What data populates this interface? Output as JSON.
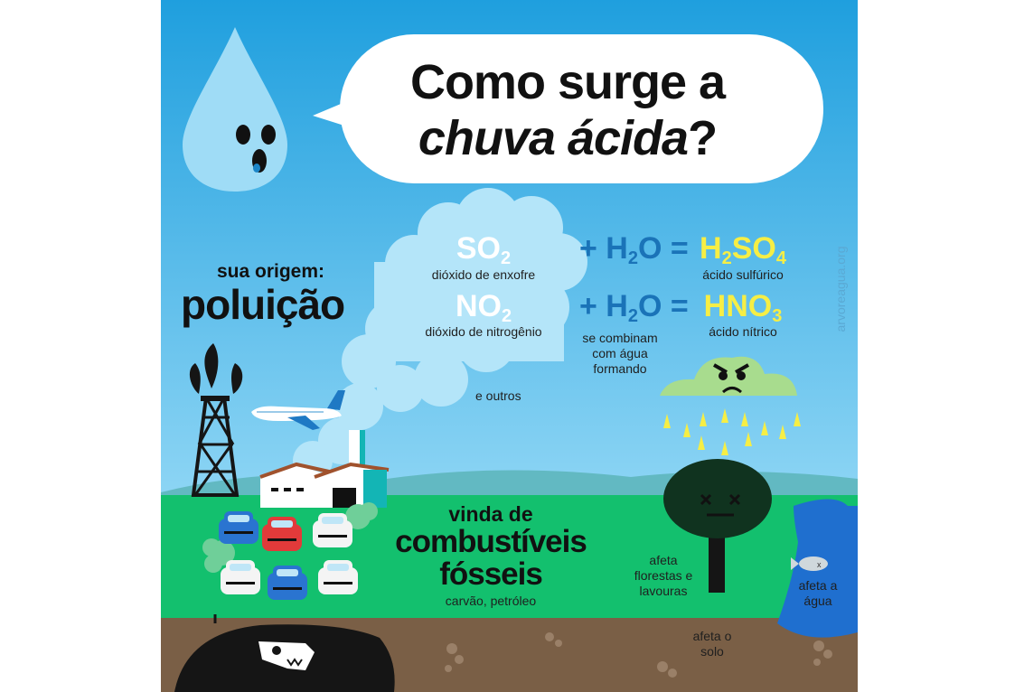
{
  "title": {
    "line1": "Como surge a",
    "line2_italic": "chuva ácida",
    "line2_mark": "?"
  },
  "origin": {
    "label": "sua origem:",
    "value": "poluição"
  },
  "compounds": [
    {
      "symbol": "SO",
      "sub": "2",
      "name": "dióxido de enxofre"
    },
    {
      "symbol": "NO",
      "sub": "2",
      "name": "dióxido de nitrogênio"
    }
  ],
  "others_label": "e outros",
  "reaction": {
    "plus": "+ H",
    "sub": "2",
    "rest": "O =",
    "note": [
      "se combinam",
      "com água",
      "formando"
    ]
  },
  "acids": [
    {
      "parts": [
        "H",
        "2",
        "SO",
        "4"
      ],
      "name": "ácido sulfúrico"
    },
    {
      "parts": [
        "HNO",
        "3"
      ],
      "name": "ácido nítrico"
    }
  ],
  "source": {
    "line1": "vinda de",
    "line2": "combustíveis",
    "line3": "fósseis",
    "examples": "carvão, petróleo"
  },
  "effects": {
    "forests": [
      "afeta",
      "florestas e",
      "lavouras"
    ],
    "water": [
      "afeta a",
      "água"
    ],
    "soil": [
      "afeta o",
      "solo"
    ]
  },
  "watermark": "arvoreagua.org",
  "colors": {
    "sky_top": "#1f9fde",
    "sky_bottom": "#8fd6f5",
    "grass": "#13c06e",
    "soil": "#7a5f46",
    "acid_yellow": "#f6ee45",
    "formula_blue": "#1a73b8"
  }
}
